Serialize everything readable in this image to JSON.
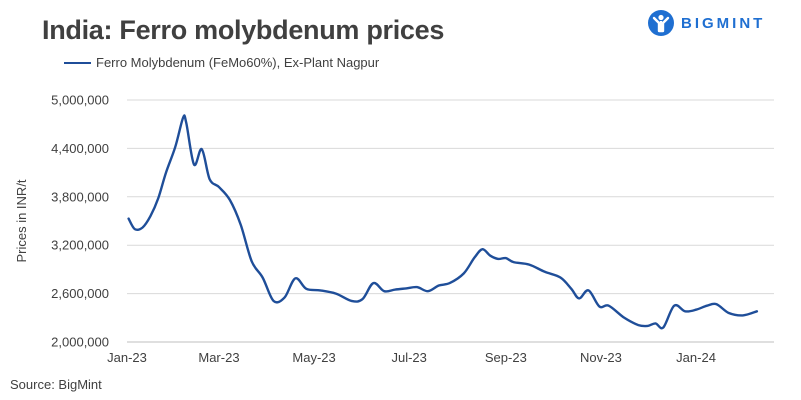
{
  "title": "India: Ferro molybdenum prices",
  "brand": {
    "name": "BIGMINT",
    "color": "#1f6fd1",
    "icon": "person-arms-raised-logo-icon"
  },
  "source": "Source: BigMint",
  "chart_data": {
    "type": "line",
    "title": "India: Ferro molybdenum prices",
    "xlabel": "",
    "ylabel": "Prices in INR/t",
    "ylim": [
      2000000,
      5000000
    ],
    "yticks": [
      2000000,
      2600000,
      3200000,
      3800000,
      4400000,
      5000000
    ],
    "ytick_labels": [
      "2,000,000",
      "2,600,000",
      "3,200,000",
      "3,800,000",
      "4,400,000",
      "5,000,000"
    ],
    "xlim": [
      "2023-01-01",
      "2024-02-20"
    ],
    "xticks": [
      "2023-01-01",
      "2023-03-01",
      "2023-05-01",
      "2023-07-01",
      "2023-09-01",
      "2023-11-01",
      "2024-01-01"
    ],
    "xtick_labels": [
      "Jan-23",
      "Mar-23",
      "May-23",
      "Jul-23",
      "Sep-23",
      "Nov-23",
      "Jan-24"
    ],
    "grid": true,
    "legend": "top-left",
    "series": [
      {
        "name": "Ferro Molybdenum (FeMo60%), Ex-Plant Nagpur",
        "color": "#1f4e99",
        "points": [
          [
            "2023-01-02",
            3530000
          ],
          [
            "2023-01-06",
            3400000
          ],
          [
            "2023-01-11",
            3420000
          ],
          [
            "2023-01-16",
            3560000
          ],
          [
            "2023-01-21",
            3780000
          ],
          [
            "2023-01-26",
            4100000
          ],
          [
            "2023-02-01",
            4420000
          ],
          [
            "2023-02-06",
            4780000
          ],
          [
            "2023-02-08",
            4720000
          ],
          [
            "2023-02-13",
            4200000
          ],
          [
            "2023-02-18",
            4390000
          ],
          [
            "2023-02-23",
            4020000
          ],
          [
            "2023-03-01",
            3920000
          ],
          [
            "2023-03-08",
            3760000
          ],
          [
            "2023-03-15",
            3450000
          ],
          [
            "2023-03-22",
            3000000
          ],
          [
            "2023-03-29",
            2800000
          ],
          [
            "2023-04-05",
            2510000
          ],
          [
            "2023-04-12",
            2550000
          ],
          [
            "2023-04-19",
            2790000
          ],
          [
            "2023-04-26",
            2660000
          ],
          [
            "2023-05-05",
            2640000
          ],
          [
            "2023-05-15",
            2600000
          ],
          [
            "2023-05-25",
            2510000
          ],
          [
            "2023-06-01",
            2530000
          ],
          [
            "2023-06-08",
            2730000
          ],
          [
            "2023-06-15",
            2630000
          ],
          [
            "2023-06-22",
            2650000
          ],
          [
            "2023-06-29",
            2665000
          ],
          [
            "2023-07-06",
            2680000
          ],
          [
            "2023-07-13",
            2630000
          ],
          [
            "2023-07-20",
            2700000
          ],
          [
            "2023-07-27",
            2730000
          ],
          [
            "2023-08-05",
            2850000
          ],
          [
            "2023-08-12",
            3050000
          ],
          [
            "2023-08-17",
            3150000
          ],
          [
            "2023-08-22",
            3070000
          ],
          [
            "2023-08-27",
            3030000
          ],
          [
            "2023-09-01",
            3040000
          ],
          [
            "2023-09-06",
            2990000
          ],
          [
            "2023-09-16",
            2960000
          ],
          [
            "2023-09-26",
            2870000
          ],
          [
            "2023-10-06",
            2800000
          ],
          [
            "2023-10-13",
            2660000
          ],
          [
            "2023-10-18",
            2540000
          ],
          [
            "2023-10-24",
            2640000
          ],
          [
            "2023-10-31",
            2440000
          ],
          [
            "2023-11-06",
            2450000
          ],
          [
            "2023-11-16",
            2300000
          ],
          [
            "2023-11-25",
            2210000
          ],
          [
            "2023-12-01",
            2200000
          ],
          [
            "2023-12-06",
            2230000
          ],
          [
            "2023-12-11",
            2180000
          ],
          [
            "2023-12-18",
            2450000
          ],
          [
            "2023-12-25",
            2380000
          ],
          [
            "2024-01-01",
            2400000
          ],
          [
            "2024-01-08",
            2450000
          ],
          [
            "2024-01-14",
            2470000
          ],
          [
            "2024-01-22",
            2360000
          ],
          [
            "2024-01-31",
            2330000
          ],
          [
            "2024-02-09",
            2380000
          ]
        ]
      }
    ]
  }
}
